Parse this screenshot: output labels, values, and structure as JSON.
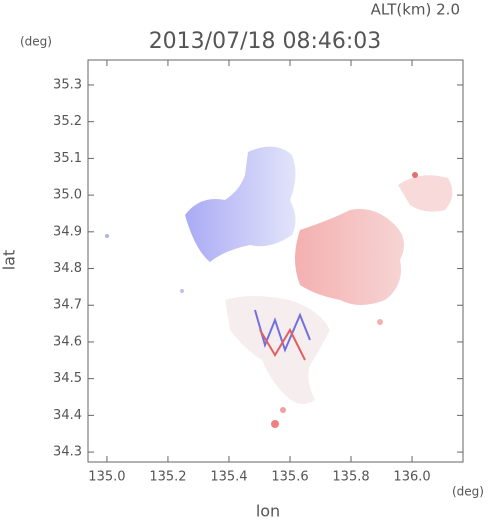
{
  "chart_data": {
    "type": "map",
    "title": "2013/07/18 08:46:03",
    "altitude_label": "ALT(km) 2.0",
    "y_unit": "(deg)",
    "x_unit": "(deg)",
    "xlabel": "lon",
    "ylabel": "lat",
    "xlim": [
      134.938,
      136.167
    ],
    "ylim": [
      34.273,
      35.368
    ],
    "xticks": [
      {
        "value": 135,
        "label": "135.0"
      },
      135.2,
      135.4,
      135.6,
      135.8,
      {
        "value": 136,
        "label": "136.0"
      }
    ],
    "yticks": [
      35.3,
      35.2,
      35.1,
      {
        "value": 35,
        "label": "35.0"
      },
      34.9,
      34.8,
      34.7,
      34.6,
      34.5,
      34.4,
      34.3
    ]
  }
}
